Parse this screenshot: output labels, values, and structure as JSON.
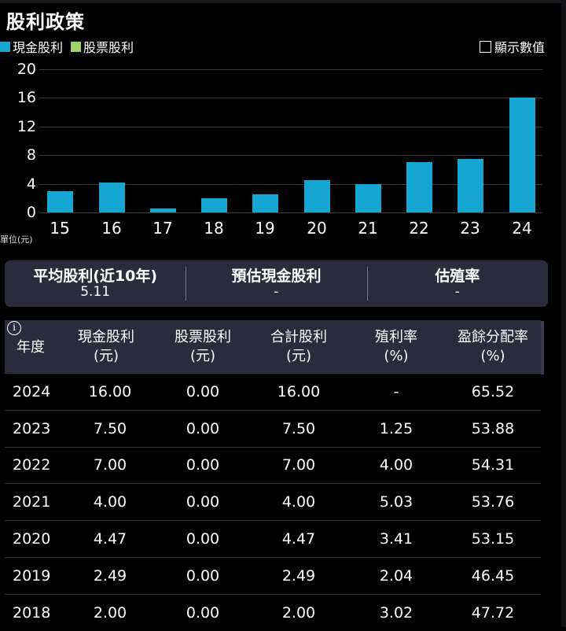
{
  "title": "股利政策",
  "legend": [
    {
      "label": "現金股利",
      "color": "#16a6d2"
    },
    {
      "label": "股票股利",
      "color": "#9fd46a"
    }
  ],
  "show_values": {
    "label": "顯示數值",
    "checked": false
  },
  "unit_label": "單位(元)",
  "chart_data": {
    "type": "bar",
    "title": "股利政策",
    "xlabel": "",
    "ylabel": "單位(元)",
    "categories": [
      "15",
      "16",
      "17",
      "18",
      "19",
      "20",
      "21",
      "22",
      "23",
      "24"
    ],
    "series": [
      {
        "name": "現金股利",
        "color": "#16a6d2",
        "values": [
          3.0,
          4.2,
          0.5,
          2.0,
          2.49,
          4.47,
          4.0,
          7.0,
          7.5,
          16.0
        ]
      },
      {
        "name": "股票股利",
        "color": "#9fd46a",
        "values": [
          0,
          0,
          0,
          0,
          0,
          0,
          0,
          0,
          0,
          0
        ]
      }
    ],
    "yticks": [
      "0",
      "4",
      "8",
      "12",
      "16",
      "20"
    ],
    "ylim": [
      0,
      20
    ],
    "grid": true,
    "legend_position": "top-left"
  },
  "summary": [
    {
      "label": "平均股利(近10年)",
      "value": "5.11"
    },
    {
      "label": "預估現金股利",
      "value": "-"
    },
    {
      "label": "估殖率",
      "value": "-"
    }
  ],
  "table": {
    "headers": [
      {
        "l1": "年度",
        "l2": ""
      },
      {
        "l1": "現金股利",
        "l2": "(元)"
      },
      {
        "l1": "股票股利",
        "l2": "(元)"
      },
      {
        "l1": "合計股利",
        "l2": "(元)"
      },
      {
        "l1": "殖利率",
        "l2": "(%)"
      },
      {
        "l1": "盈餘分配率",
        "l2": "(%)"
      }
    ],
    "info_icon": "i",
    "rows": [
      [
        "2024",
        "16.00",
        "0.00",
        "16.00",
        "-",
        "65.52"
      ],
      [
        "2023",
        "7.50",
        "0.00",
        "7.50",
        "1.25",
        "53.88"
      ],
      [
        "2022",
        "7.00",
        "0.00",
        "7.00",
        "4.00",
        "54.31"
      ],
      [
        "2021",
        "4.00",
        "0.00",
        "4.00",
        "5.03",
        "53.76"
      ],
      [
        "2020",
        "4.47",
        "0.00",
        "4.47",
        "3.41",
        "53.15"
      ],
      [
        "2019",
        "2.49",
        "0.00",
        "2.49",
        "2.04",
        "46.45"
      ],
      [
        "2018",
        "2.00",
        "0.00",
        "2.00",
        "3.02",
        "47.72"
      ]
    ]
  }
}
